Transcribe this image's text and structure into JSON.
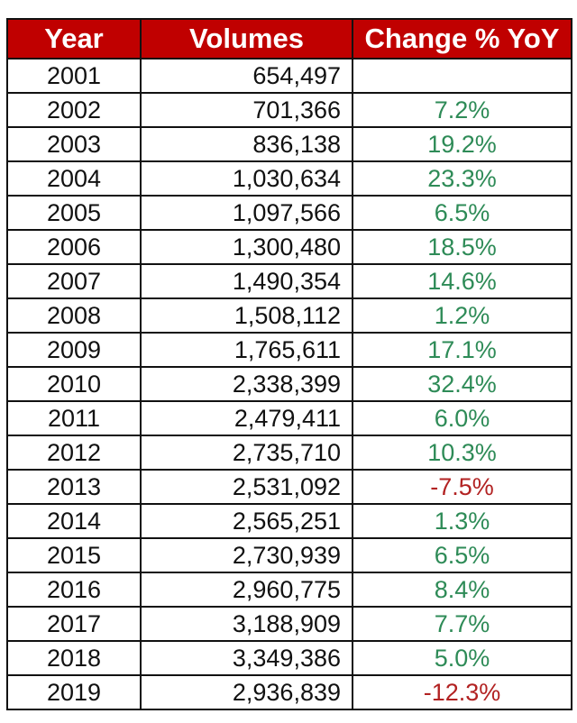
{
  "headers": {
    "year": "Year",
    "volumes": "Volumes",
    "change": "Change % YoY"
  },
  "colors": {
    "header_bg": "#c00000",
    "positive": "#2e8b57",
    "negative": "#b22222"
  },
  "rows": [
    {
      "year": "2001",
      "volume": "654,497",
      "change": ""
    },
    {
      "year": "2002",
      "volume": "701,366",
      "change": "7.2%"
    },
    {
      "year": "2003",
      "volume": "836,138",
      "change": "19.2%"
    },
    {
      "year": "2004",
      "volume": "1,030,634",
      "change": "23.3%"
    },
    {
      "year": "2005",
      "volume": "1,097,566",
      "change": "6.5%"
    },
    {
      "year": "2006",
      "volume": "1,300,480",
      "change": "18.5%"
    },
    {
      "year": "2007",
      "volume": "1,490,354",
      "change": "14.6%"
    },
    {
      "year": "2008",
      "volume": "1,508,112",
      "change": "1.2%"
    },
    {
      "year": "2009",
      "volume": "1,765,611",
      "change": "17.1%"
    },
    {
      "year": "2010",
      "volume": "2,338,399",
      "change": "32.4%"
    },
    {
      "year": "2011",
      "volume": "2,479,411",
      "change": "6.0%"
    },
    {
      "year": "2012",
      "volume": "2,735,710",
      "change": "10.3%"
    },
    {
      "year": "2013",
      "volume": "2,531,092",
      "change": "-7.5%"
    },
    {
      "year": "2014",
      "volume": "2,565,251",
      "change": "1.3%"
    },
    {
      "year": "2015",
      "volume": "2,730,939",
      "change": "6.5%"
    },
    {
      "year": "2016",
      "volume": "2,960,775",
      "change": "8.4%"
    },
    {
      "year": "2017",
      "volume": "3,188,909",
      "change": "7.7%"
    },
    {
      "year": "2018",
      "volume": "3,349,386",
      "change": "5.0%"
    },
    {
      "year": "2019",
      "volume": "2,936,839",
      "change": "-12.3%"
    }
  ]
}
